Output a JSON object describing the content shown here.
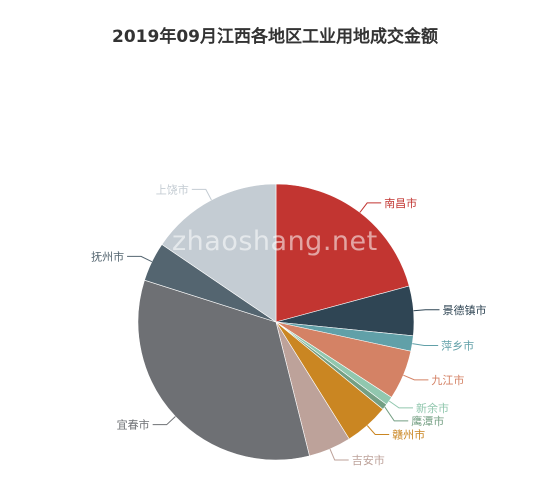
{
  "chart_data": {
    "type": "pie",
    "title": "2019年09月江西各地区工业用地成交金额",
    "slices": [
      {
        "name": "南昌市",
        "value": 20.8,
        "color": "#c23531"
      },
      {
        "name": "景德镇市",
        "value": 5.8,
        "color": "#2f4554"
      },
      {
        "name": "萍乡市",
        "value": 1.8,
        "color": "#61a0a8"
      },
      {
        "name": "九江市",
        "value": 5.8,
        "color": "#d48265"
      },
      {
        "name": "新余市",
        "value": 1.0,
        "color": "#91c7ae"
      },
      {
        "name": "鹰潭市",
        "value": 0.7,
        "color": "#749f83"
      },
      {
        "name": "赣州市",
        "value": 5.2,
        "color": "#ca8622"
      },
      {
        "name": "吉安市",
        "value": 5.0,
        "color": "#bda29a"
      },
      {
        "name": "宜春市",
        "value": 33.8,
        "color": "#6e7074"
      },
      {
        "name": "抚州市",
        "value": 4.6,
        "color": "#546570"
      },
      {
        "name": "上饶市",
        "value": 15.5,
        "color": "#c4ccd3"
      }
    ]
  },
  "watermark": "zhaoshang.net"
}
